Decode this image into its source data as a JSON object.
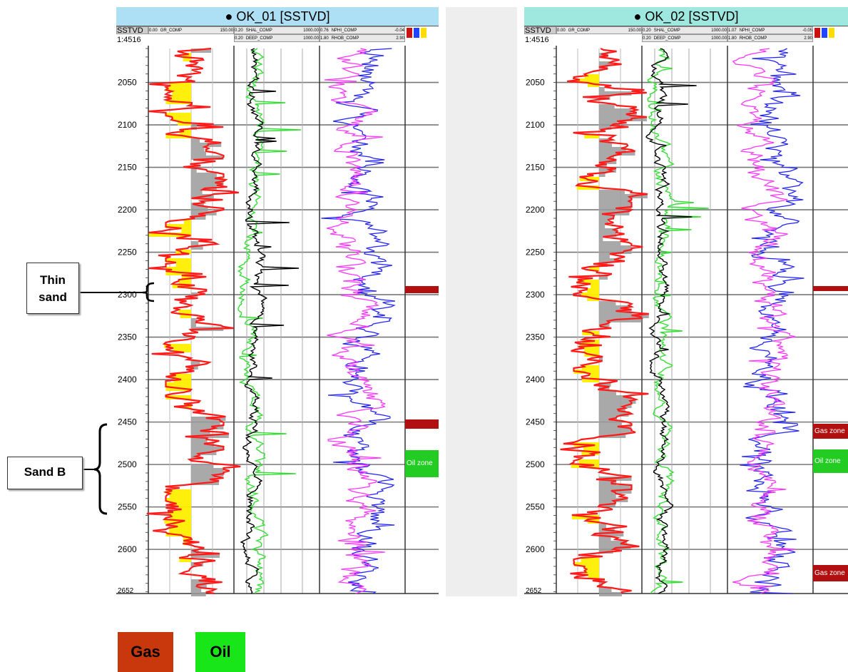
{
  "wells": [
    {
      "title": "OK_01 [SSTVD]",
      "depth_unit": "SSTVD",
      "scale": "1:4516",
      "gamma_header": {
        "name": "GR_COMP",
        "min": "0.00",
        "max": "150.00"
      },
      "res_headers": [
        {
          "name": "SHAL_COMP",
          "min": "0.20",
          "max": "1000.00"
        },
        {
          "name": "DEEP_COMP",
          "min": "0.20",
          "max": "1000.00"
        }
      ],
      "por_headers": [
        {
          "name": "NPHI_COMP",
          "min": "0.76",
          "max": "-0.04"
        },
        {
          "name": "RHOB_COMP",
          "min": "1.80",
          "max": "2.90"
        }
      ],
      "zones": [
        {
          "label": "",
          "top": 2290,
          "bottom": 2298,
          "type": "gas"
        },
        {
          "label": "",
          "top": 2447,
          "bottom": 2458,
          "type": "gas"
        },
        {
          "label": "Oil zone",
          "top": 2483,
          "bottom": 2515,
          "type": "oil"
        }
      ]
    },
    {
      "title": "OK_02 [SSTVD]",
      "depth_unit": "SSTVD",
      "scale": "1:4516",
      "gamma_header": {
        "name": "GR_COMP",
        "min": "0.00",
        "max": "150.00"
      },
      "res_headers": [
        {
          "name": "SHAL_COMP",
          "min": "0.20",
          "max": "1000.00"
        },
        {
          "name": "DEEP_COMP",
          "min": "0.20",
          "max": "1000.00"
        }
      ],
      "por_headers": [
        {
          "name": "NPHI_COMP",
          "min": "1.07",
          "max": "-0.05"
        },
        {
          "name": "RHOB_COMP",
          "min": "1.80",
          "max": "2.90"
        }
      ],
      "zones": [
        {
          "label": "",
          "top": 2290,
          "bottom": 2296,
          "type": "gas"
        },
        {
          "label": "Gas zone",
          "top": 2452,
          "bottom": 2470,
          "type": "gas"
        },
        {
          "label": "Oil zone",
          "top": 2482,
          "bottom": 2510,
          "type": "oil"
        },
        {
          "label": "Gas zone",
          "top": 2618,
          "bottom": 2638,
          "type": "gas"
        }
      ]
    }
  ],
  "depth_ticks": [
    "2050",
    "2100",
    "2150",
    "2200",
    "2250",
    "2300",
    "2350",
    "2400",
    "2450",
    "2500",
    "2550",
    "2600"
  ],
  "bottom_depth_label": "2652",
  "depth_range": [
    2010,
    2652
  ],
  "annotations": {
    "thin_sand": "Thin sand",
    "sand_b": "Sand B"
  },
  "legend": {
    "gas_label": "Gas",
    "oil_label": "Oil",
    "gas_color": "#c8380c",
    "oil_color": "#19e619"
  },
  "colors": {
    "gr_curve": "#ff1a1a",
    "sand_fill": "#ffee00",
    "shale_fill": "#9a9a9a",
    "deep_res": "#000000",
    "shal_res": "#33dd33",
    "nphi": "#ff33ff",
    "rhob": "#2222ff",
    "gas_zone": "#b21010",
    "oil_zone": "#22cc22",
    "title_bg": "#aee0f5"
  }
}
